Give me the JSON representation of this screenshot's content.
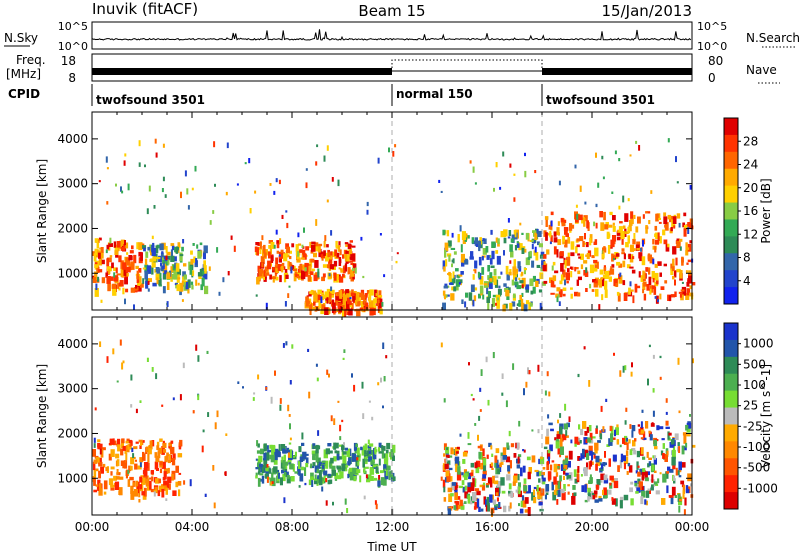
{
  "header": {
    "station": "Inuvik (fitACF)",
    "beam": "Beam 15",
    "date": "15/Jan/2013"
  },
  "top_panels": {
    "nsky_label": "N.Sky",
    "nsky_ticks": [
      "10^5",
      "10^0"
    ],
    "nsearch_label": "N.Search",
    "nsearch_ticks": [
      "10^5",
      "10^0"
    ],
    "freq_label": "Freq.",
    "freq_unit": "[MHz]",
    "freq_ticks": [
      "18",
      "8"
    ],
    "nave_label": "Nave",
    "nave_ticks": [
      "80",
      "0"
    ],
    "cpid_label": "CPID",
    "cpid_segments": [
      {
        "label": "twofsound 3501",
        "start_hour": 0,
        "end_hour": 12
      },
      {
        "label": "normal 150",
        "start_hour": 12,
        "end_hour": 18
      },
      {
        "label": "twofsound 3501",
        "start_hour": 18,
        "end_hour": 24
      }
    ]
  },
  "chart_data": [
    {
      "type": "heatmap",
      "name_text": "Power",
      "ylabel": "Slant Range [km]",
      "xlabel": "",
      "xlim": [
        0,
        24
      ],
      "ylim": [
        180,
        4600
      ],
      "yticks": [
        1000,
        2000,
        3000,
        4000
      ],
      "colorbar": {
        "label": "Power [dB]",
        "ticks": [
          "28",
          "24",
          "20",
          "16",
          "12",
          "8",
          "4"
        ],
        "colors": [
          "#e00000",
          "#ff3300",
          "#ff6600",
          "#ffaa00",
          "#ffd000",
          "#88cc44",
          "#33aa55",
          "#2e8b57",
          "#3366aa",
          "#2244cc",
          "#1122ee"
        ]
      },
      "regions": [
        {
          "x": [
            0.0,
            2.0
          ],
          "y": [
            650,
            1800
          ],
          "level": "high"
        },
        {
          "x": [
            2.0,
            4.5
          ],
          "y": [
            700,
            1700
          ],
          "level": "medium"
        },
        {
          "x": [
            6.5,
            10.5
          ],
          "y": [
            900,
            1750
          ],
          "level": "high"
        },
        {
          "x": [
            8.5,
            11.5
          ],
          "y": [
            200,
            650
          ],
          "level": "high"
        },
        {
          "x": [
            14.0,
            18.0
          ],
          "y": [
            300,
            2000
          ],
          "level": "medium"
        },
        {
          "x": [
            18.0,
            24.0
          ],
          "y": [
            500,
            2400
          ],
          "level": "high"
        }
      ]
    },
    {
      "type": "heatmap",
      "name_text": "Velocity",
      "ylabel": "Slant Range [km]",
      "xlabel": "Time UT",
      "xticks": [
        "00:00",
        "04:00",
        "08:00",
        "12:00",
        "16:00",
        "20:00",
        "00:00"
      ],
      "xlim": [
        0,
        24
      ],
      "ylim": [
        180,
        4600
      ],
      "yticks": [
        1000,
        2000,
        3000,
        4000
      ],
      "colorbar": {
        "label": "Velocity [m s^-1]",
        "ticks": [
          "1000",
          "500",
          "100",
          "25",
          "-25",
          "-100",
          "-500",
          "-1000"
        ],
        "colors": [
          "#1a33cc",
          "#2255aa",
          "#2e8b57",
          "#4caf50",
          "#77dd33",
          "#bbbbbb",
          "#ffaa00",
          "#ff8800",
          "#ff5500",
          "#ff2200",
          "#dd0000"
        ]
      },
      "regions": [
        {
          "x": [
            0.0,
            3.5
          ],
          "y": [
            700,
            1900
          ],
          "level": "negative"
        },
        {
          "x": [
            6.5,
            12.0
          ],
          "y": [
            950,
            1800
          ],
          "level": "positive"
        },
        {
          "x": [
            14.0,
            18.0
          ],
          "y": [
            300,
            1800
          ],
          "level": "mixed"
        },
        {
          "x": [
            18.0,
            24.0
          ],
          "y": [
            500,
            2300
          ],
          "level": "mixed"
        }
      ]
    }
  ]
}
